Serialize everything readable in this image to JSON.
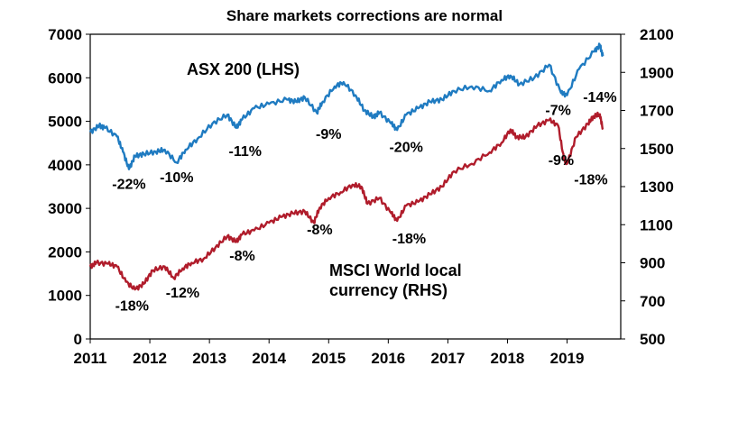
{
  "chart_data": {
    "type": "line",
    "title": "Share markets corrections are normal",
    "x_ticks": [
      "2011",
      "2012",
      "2013",
      "2014",
      "2015",
      "2016",
      "2017",
      "2018",
      "2019"
    ],
    "y_left": {
      "ylim": [
        0,
        7000
      ],
      "ticks": [
        0,
        1000,
        2000,
        3000,
        4000,
        5000,
        6000,
        7000
      ]
    },
    "y_right": {
      "ylim": [
        500,
        2100
      ],
      "ticks": [
        500,
        700,
        900,
        1100,
        1300,
        1500,
        1700,
        1900,
        2100
      ]
    },
    "series": [
      {
        "name": "ASX 200 (LHS)",
        "axis": "left",
        "color": "#1f7bc1",
        "x": [
          2011.0,
          2011.15,
          2011.25,
          2011.45,
          2011.55,
          2011.65,
          2011.75,
          2011.9,
          2012.1,
          2012.25,
          2012.45,
          2012.6,
          2012.8,
          2013.05,
          2013.3,
          2013.45,
          2013.55,
          2013.75,
          2014.0,
          2014.3,
          2014.45,
          2014.6,
          2014.8,
          2014.9,
          2015.1,
          2015.25,
          2015.45,
          2015.6,
          2015.75,
          2015.85,
          2016.05,
          2016.15,
          2016.3,
          2016.5,
          2016.7,
          2016.9,
          2017.1,
          2017.4,
          2017.7,
          2017.9,
          2018.05,
          2018.2,
          2018.45,
          2018.7,
          2018.9,
          2019.0,
          2019.2,
          2019.45,
          2019.55,
          2019.6
        ],
        "y": [
          4750,
          4900,
          4850,
          4650,
          4300,
          3900,
          4200,
          4250,
          4300,
          4350,
          4050,
          4350,
          4600,
          4950,
          5150,
          4850,
          5050,
          5300,
          5400,
          5500,
          5450,
          5550,
          5200,
          5450,
          5800,
          5900,
          5600,
          5250,
          5100,
          5200,
          4950,
          4800,
          5150,
          5300,
          5450,
          5500,
          5700,
          5800,
          5700,
          5950,
          6050,
          5850,
          6000,
          6300,
          5650,
          5600,
          6200,
          6600,
          6750,
          6500
        ]
      },
      {
        "name": "MSCI World local currency (RHS)",
        "axis": "right",
        "color": "#b01c2b",
        "x": [
          2011.0,
          2011.1,
          2011.3,
          2011.45,
          2011.6,
          2011.75,
          2011.9,
          2012.05,
          2012.25,
          2012.4,
          2012.55,
          2012.7,
          2012.9,
          2013.1,
          2013.3,
          2013.45,
          2013.55,
          2013.75,
          2014.0,
          2014.2,
          2014.4,
          2014.6,
          2014.75,
          2014.85,
          2015.0,
          2015.2,
          2015.4,
          2015.55,
          2015.65,
          2015.85,
          2016.05,
          2016.15,
          2016.3,
          2016.5,
          2016.7,
          2016.9,
          2017.1,
          2017.4,
          2017.7,
          2017.9,
          2018.05,
          2018.15,
          2018.3,
          2018.5,
          2018.7,
          2018.85,
          2018.95,
          2019.0,
          2019.15,
          2019.35,
          2019.45,
          2019.55,
          2019.6
        ],
        "y": [
          880,
          900,
          895,
          880,
          800,
          760,
          790,
          860,
          880,
          820,
          870,
          900,
          920,
          980,
          1040,
          1010,
          1050,
          1070,
          1110,
          1140,
          1160,
          1170,
          1110,
          1190,
          1240,
          1270,
          1310,
          1300,
          1210,
          1240,
          1160,
          1120,
          1200,
          1220,
          1260,
          1300,
          1380,
          1420,
          1480,
          1530,
          1600,
          1560,
          1560,
          1620,
          1650,
          1620,
          1440,
          1420,
          1560,
          1630,
          1670,
          1680,
          1600
        ]
      }
    ],
    "labels": {
      "asx": "ASX 200 (LHS)",
      "msci_line1": "MSCI World local",
      "msci_line2": "currency (RHS)"
    },
    "annotations": [
      {
        "text": "-22%",
        "x": 2011.65,
        "axis": "left",
        "y": 3450
      },
      {
        "text": "-10%",
        "x": 2012.45,
        "axis": "left",
        "y": 3600
      },
      {
        "text": "-11%",
        "x": 2013.6,
        "axis": "left",
        "y": 4200
      },
      {
        "text": "-9%",
        "x": 2015.0,
        "axis": "left",
        "y": 4600
      },
      {
        "text": "-20%",
        "x": 2016.3,
        "axis": "left",
        "y": 4300
      },
      {
        "text": "-7%",
        "x": 2018.85,
        "axis": "left",
        "y": 5150
      },
      {
        "text": "-14%",
        "x": 2019.55,
        "axis": "left",
        "y": 5450
      },
      {
        "text": "-18%",
        "x": 2011.7,
        "axis": "left",
        "y": 650
      },
      {
        "text": "-12%",
        "x": 2012.55,
        "axis": "left",
        "y": 950
      },
      {
        "text": "-8%",
        "x": 2013.55,
        "axis": "left",
        "y": 1800
      },
      {
        "text": "-8%",
        "x": 2014.85,
        "axis": "left",
        "y": 2400
      },
      {
        "text": "-18%",
        "x": 2016.35,
        "axis": "left",
        "y": 2200
      },
      {
        "text": "-9%",
        "x": 2018.9,
        "axis": "left",
        "y": 4000
      },
      {
        "text": "-18%",
        "x": 2019.4,
        "axis": "left",
        "y": 3550
      }
    ],
    "xlim": [
      2011,
      2019.9
    ],
    "grid": false
  }
}
